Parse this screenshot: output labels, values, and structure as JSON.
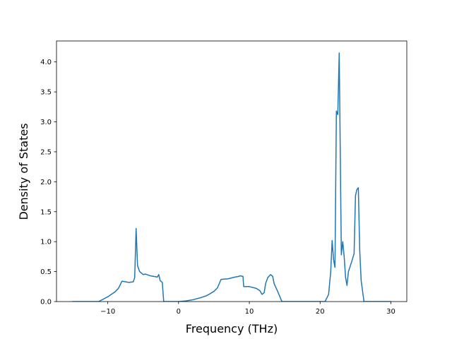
{
  "chart_data": {
    "type": "line",
    "xlabel": "Frequency (THz)",
    "ylabel": "Density of States",
    "x": [
      -15,
      -11.3,
      -10,
      -9,
      -8.5,
      -8,
      -7,
      -6.4,
      -6.2,
      -6.0,
      -5.8,
      -5.5,
      -5,
      -4.7,
      -4,
      -3,
      -2.8,
      -2.6,
      -2.3,
      -2.1,
      0,
      1,
      2,
      3,
      4,
      5,
      5.5,
      6,
      7,
      8,
      8.5,
      8.7,
      9.1,
      9.2,
      10,
      11,
      11.5,
      11.8,
      12.1,
      12.3,
      12.6,
      13,
      13.3,
      13.5,
      14,
      14.6,
      20.7,
      21.2,
      21.5,
      21.7,
      21.9,
      22.1,
      22.3,
      22.5,
      22.7,
      23.0,
      23.2,
      23.4,
      23.6,
      23.8,
      24.0,
      24.5,
      24.8,
      25.0,
      25.2,
      25.4,
      25.6,
      25.8,
      26.2,
      30
    ],
    "series": [
      {
        "color": "#1f77b4",
        "values": [
          0,
          0,
          0.08,
          0.16,
          0.22,
          0.34,
          0.32,
          0.33,
          0.4,
          1.22,
          0.6,
          0.5,
          0.45,
          0.46,
          0.43,
          0.41,
          0.45,
          0.35,
          0.32,
          0,
          0,
          0.01,
          0.03,
          0.06,
          0.1,
          0.17,
          0.23,
          0.37,
          0.38,
          0.41,
          0.42,
          0.43,
          0.42,
          0.25,
          0.25,
          0.22,
          0.18,
          0.12,
          0.15,
          0.3,
          0.4,
          0.45,
          0.42,
          0.3,
          0.17,
          0,
          0,
          0.12,
          0.5,
          1.02,
          0.7,
          0.57,
          3.18,
          3.12,
          4.15,
          0.78,
          1.0,
          0.75,
          0.4,
          0.27,
          0.5,
          0.68,
          0.8,
          1.77,
          1.87,
          1.9,
          0.85,
          0.35,
          0,
          0
        ]
      }
    ],
    "xlim": [
      -17.25,
      32.25
    ],
    "ylim": [
      0,
      4.35
    ],
    "xticks": [
      {
        "value": -10,
        "label": "−10"
      },
      0,
      10,
      20,
      30
    ],
    "yticks": [
      {
        "value": 0,
        "label": "0.0"
      },
      {
        "value": 0.5,
        "label": "0.5"
      },
      {
        "value": 1,
        "label": "1.0"
      },
      {
        "value": 1.5,
        "label": "1.5"
      },
      {
        "value": 2,
        "label": "2.0"
      },
      {
        "value": 2.5,
        "label": "2.5"
      },
      {
        "value": 3,
        "label": "3.0"
      },
      {
        "value": 3.5,
        "label": "3.5"
      },
      {
        "value": 4,
        "label": "4.0"
      }
    ]
  }
}
